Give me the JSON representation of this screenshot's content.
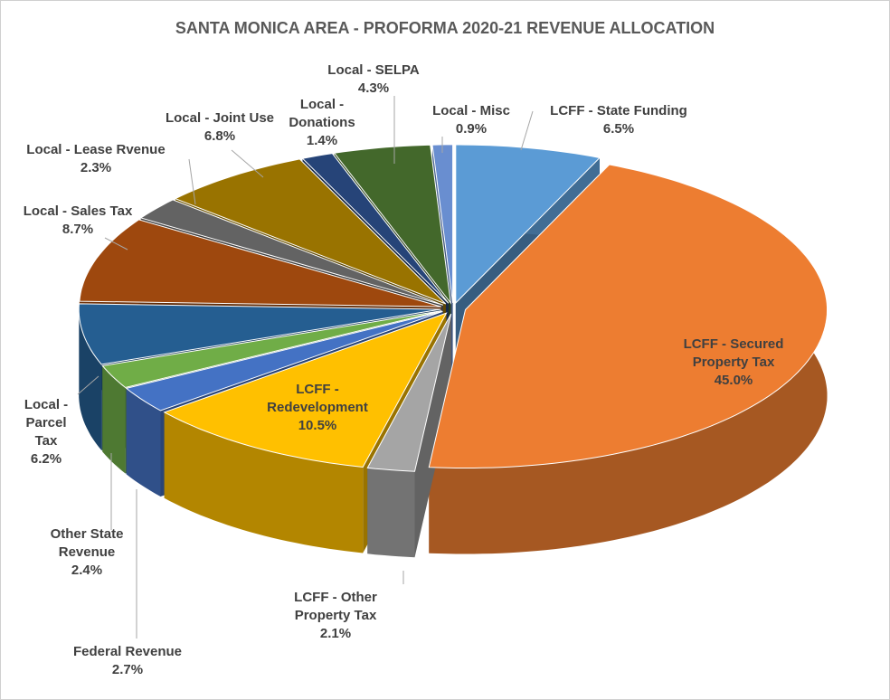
{
  "chart_data": {
    "type": "pie",
    "title": "SANTA MONICA AREA - PROFORMA 2020-21 REVENUE ALLOCATION",
    "categories": [
      "LCFF - State Funding",
      "LCFF - Secured Property Tax",
      "LCFF - Other Property Tax",
      "LCFF - Redevelopment",
      "Federal Revenue",
      "Other State Revenue",
      "Local - Parcel Tax",
      "Local - Sales Tax",
      "Local - Lease Rvenue",
      "Local - Joint Use",
      "Local - Donations",
      "Local - SELPA",
      "Local - Misc"
    ],
    "values": [
      6.5,
      45.0,
      2.1,
      10.5,
      2.7,
      2.4,
      6.2,
      8.7,
      2.3,
      6.8,
      1.4,
      4.3,
      0.9
    ],
    "value_labels": [
      "6.5%",
      "45.0%",
      "2.1%",
      "10.5%",
      "2.7%",
      "2.4%",
      "6.2%",
      "8.7%",
      "2.3%",
      "6.8%",
      "1.4%",
      "4.3%",
      "0.9%"
    ],
    "colors": [
      "#5b9bd5",
      "#ed7d31",
      "#a5a5a5",
      "#ffc000",
      "#4472c4",
      "#70ad47",
      "#255e91",
      "#9e480e",
      "#636363",
      "#997300",
      "#264478",
      "#43682b",
      "#698ed0"
    ]
  }
}
